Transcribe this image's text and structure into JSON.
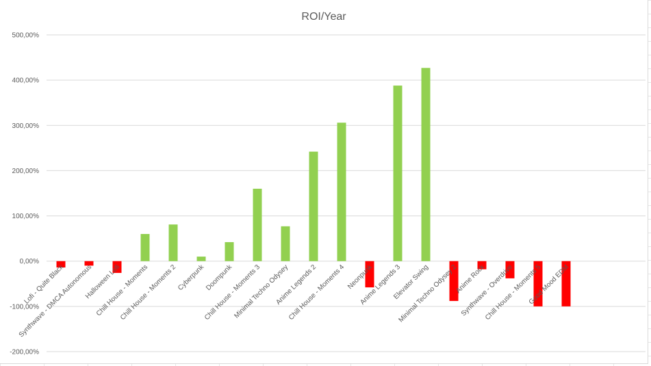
{
  "chart_data": {
    "type": "bar",
    "title": "ROI/Year",
    "xlabel": "",
    "ylabel": "",
    "ylim": [
      -200,
      500
    ],
    "yticks": [
      "500,00%",
      "400,00%",
      "300,00%",
      "200,00%",
      "100,00%",
      "0,00%",
      "-100,00%",
      "-200,00%"
    ],
    "ytick_values": [
      500,
      400,
      300,
      200,
      100,
      0,
      -100,
      -200
    ],
    "grid": true,
    "legend": "none",
    "positive_color": "#92d050",
    "negative_color": "#ff0000",
    "categories": [
      "Lofi - Quite Black",
      "Synthwave - DMCA Autonomous",
      "Halloween Lofi",
      "Chill House - Moments",
      "Chill House - Moments 2",
      "Cyberpunk",
      "Doompunk",
      "Chill House - Moments 3",
      "Minimal Techno Odysey",
      "Anime Legends 2",
      "Chill House - Moments 4",
      "Neonpunk",
      "Anime Legends 3",
      "Elevator Swing",
      "Minimal Techno Odysey 2",
      "Anime Rock",
      "Synthwave - Overdrive",
      "Chill House - Moments 5",
      "Good Mood EDM"
    ],
    "values": [
      -14,
      -10,
      -26,
      60,
      81,
      10,
      42,
      160,
      77,
      242,
      306,
      -58,
      388,
      427,
      -88,
      -18,
      -38,
      -100,
      -100
    ]
  }
}
